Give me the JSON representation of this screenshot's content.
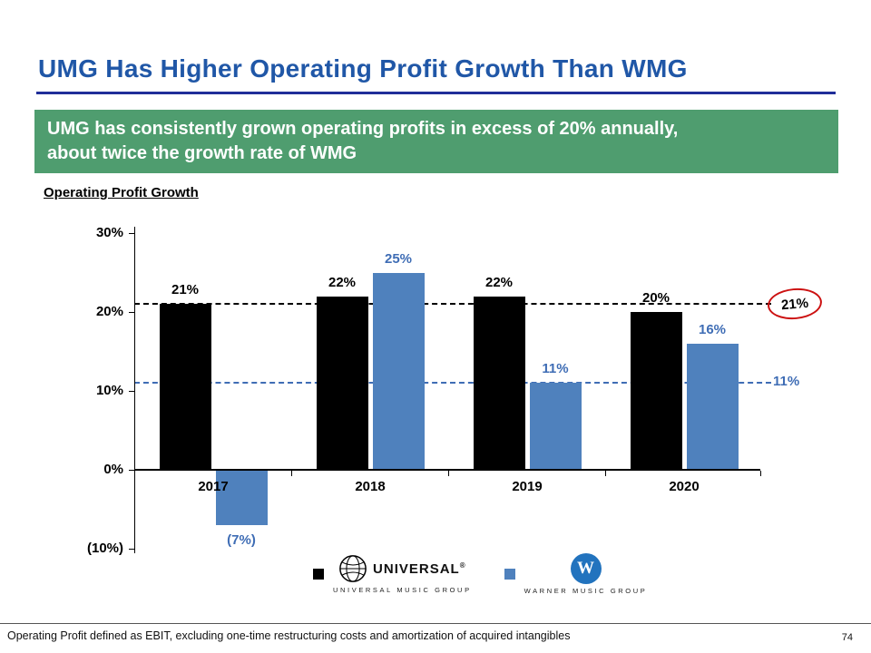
{
  "slide": {
    "title": "UMG Has Higher Operating Profit Growth Than WMG",
    "banner": {
      "lines": [
        "UMG has consistently grown operating profits in excess of 20% annually,",
        "about twice the growth rate of WMG"
      ]
    },
    "chart_heading": "Operating Profit Growth",
    "footnote": "Operating Profit defined as EBIT, excluding one-time restructuring costs and amortization of acquired intangibles",
    "page_number": "74"
  },
  "legend": {
    "umg": {
      "brand": "UNIVERSAL",
      "registered": "®",
      "caption": "UNIVERSAL MUSIC GROUP"
    },
    "wmg": {
      "brand_letter": "W",
      "caption": "WARNER MUSIC GROUP"
    }
  },
  "colors": {
    "title_blue": "#2057A7",
    "rule_blue": "#202E99",
    "banner_green": "#4F9D6F",
    "umg_black": "#000000",
    "wmg_blue": "#4F81BD",
    "wmg_label_blue": "#3F6DB5",
    "circle_red": "#CC1111"
  },
  "chart_data": {
    "type": "bar",
    "title": "Operating Profit Growth",
    "categories": [
      "2017",
      "2018",
      "2019",
      "2020"
    ],
    "series": [
      {
        "name": "UMG",
        "color": "#000000",
        "label_color": "#000000",
        "values": [
          21,
          22,
          22,
          20
        ],
        "labels": [
          "21%",
          "22%",
          "22%",
          "20%"
        ]
      },
      {
        "name": "WMG",
        "color": "#4F81BD",
        "label_color": "#3F6DB5",
        "values": [
          -7,
          25,
          11,
          16
        ],
        "labels": [
          "(7%)",
          "25%",
          "11%",
          "16%"
        ]
      }
    ],
    "y_ticks": {
      "values": [
        30,
        20,
        10,
        0,
        -10
      ],
      "labels": [
        "30%",
        "20%",
        "10%",
        "0%",
        "(10%)"
      ]
    },
    "ylim": [
      -10,
      30
    ],
    "grid": false,
    "legend_position": "bottom",
    "reference_lines": [
      {
        "value": 21,
        "label": "21%",
        "color": "#000000",
        "style": "dashed",
        "circled": true
      },
      {
        "value": 11,
        "label": "11%",
        "color": "#3F6DB5",
        "style": "dashed",
        "circled": false
      }
    ]
  }
}
